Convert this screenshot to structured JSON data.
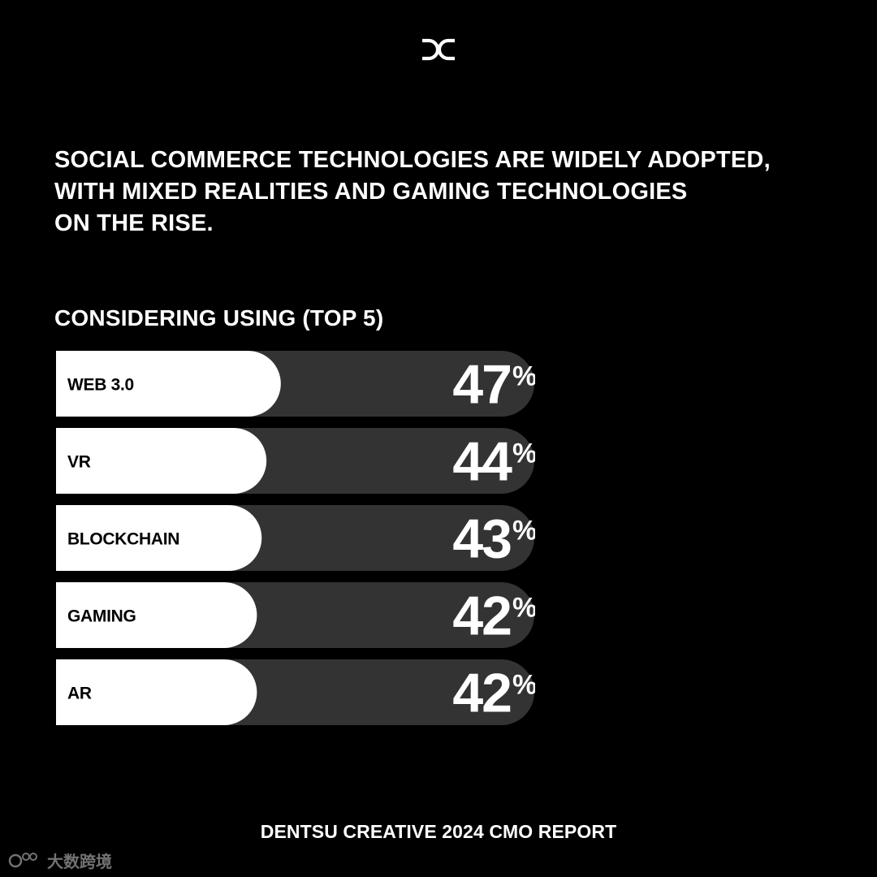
{
  "brand": {
    "logo_icon": "dentsu-creative-dc-logo-icon",
    "accent": "#ffffff",
    "background": "#000000",
    "bar_track_color": "#333333",
    "bar_fill_color": "#ffffff"
  },
  "headline": {
    "lines": [
      "SOCIAL COMMERCE TECHNOLOGIES ARE WIDELY ADOPTED,",
      "WITH MIXED REALITIES AND GAMING TECHNOLOGIES",
      "ON THE RISE."
    ]
  },
  "chart_data": {
    "type": "bar",
    "orientation": "horizontal",
    "title": "CONSIDERING USING (TOP 5)",
    "categories": [
      "WEB 3.0",
      "VR",
      "BLOCKCHAIN",
      "GAMING",
      "AR"
    ],
    "values": [
      47,
      44,
      43,
      42,
      42
    ],
    "value_suffix": "%",
    "xlim": [
      0,
      100
    ],
    "grid": false,
    "legend": "none"
  },
  "footer": {
    "text": "DENTSU CREATIVE 2024 CMO REPORT"
  },
  "watermark": {
    "text": "大数跨境",
    "icon": "watermark-logo-icon"
  }
}
